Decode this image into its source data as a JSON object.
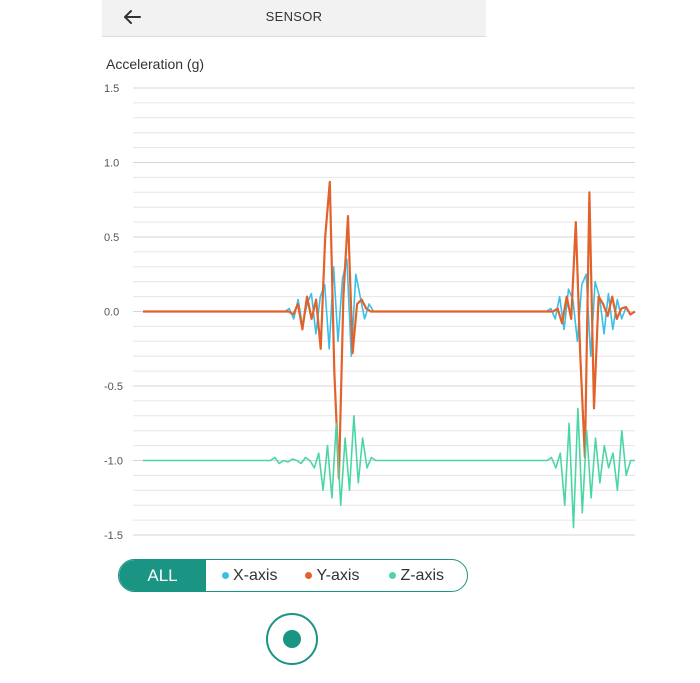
{
  "header": {
    "title": "SENSOR",
    "back_icon": "arrow-left-icon"
  },
  "legend": {
    "all_label": "ALL",
    "items": [
      {
        "label": "X-axis",
        "color": "#3bbfe6"
      },
      {
        "label": "Y-axis",
        "color": "#e2622c"
      },
      {
        "label": "Z-axis",
        "color": "#4cd6a4"
      }
    ]
  },
  "record_button": {
    "icon": "record-icon"
  },
  "chart_data": {
    "type": "line",
    "ylabel": "Acceleration (g)",
    "ylim": [
      -1.5,
      1.5
    ],
    "yticks": [
      "1.5",
      "1.0",
      "0.5",
      "0.0",
      "-0.5",
      "-1.0",
      "-1.5"
    ],
    "grid": true,
    "series": [
      {
        "name": "X-axis",
        "color": "#3bbfe6",
        "values": [
          0,
          0,
          0,
          0,
          0,
          0,
          0,
          0,
          0,
          0,
          0,
          0,
          0,
          0,
          0,
          0,
          0,
          0,
          0,
          0,
          0,
          0,
          0,
          0,
          0,
          0,
          0,
          0,
          0,
          0,
          0,
          0,
          0,
          0.02,
          -0.05,
          0.08,
          -0.1,
          0.05,
          0.12,
          -0.15,
          0.1,
          0.18,
          -0.25,
          0.3,
          -0.2,
          0.22,
          0.35,
          -0.3,
          0.25,
          0.1,
          -0.05,
          0.05,
          0,
          0,
          0,
          0,
          0,
          0,
          0,
          0,
          0,
          0,
          0,
          0,
          0,
          0,
          0,
          0,
          0,
          0,
          0,
          0,
          0,
          0,
          0,
          0,
          0,
          0,
          0,
          0,
          0,
          0,
          0,
          0,
          0,
          0,
          0,
          0,
          0,
          0,
          0,
          0,
          0.02,
          -0.05,
          0.1,
          -0.12,
          0.15,
          0.08,
          -0.2,
          0.18,
          0.25,
          -0.3,
          0.2,
          0.1,
          -0.15,
          0.12,
          -0.12,
          0.08,
          -0.05,
          0.03,
          -0.02,
          0
        ],
        "y_offset": 0
      },
      {
        "name": "Y-axis",
        "color": "#e2622c",
        "values": [
          0,
          0,
          0,
          0,
          0,
          0,
          0,
          0,
          0,
          0,
          0,
          0,
          0,
          0,
          0,
          0,
          0,
          0,
          0,
          0,
          0,
          0,
          0,
          0,
          0,
          0,
          0,
          0,
          0,
          0,
          0,
          0,
          0,
          -0.02,
          0.05,
          -0.12,
          0.1,
          -0.05,
          0.08,
          -0.25,
          0.5,
          0.87,
          -0.4,
          -1.12,
          0.1,
          0.64,
          -0.28,
          0.05,
          0.08,
          0.02,
          0,
          0,
          0,
          0,
          0,
          0,
          0,
          0,
          0,
          0,
          0,
          0,
          0,
          0,
          0,
          0,
          0,
          0,
          0,
          0,
          0,
          0,
          0,
          0,
          0,
          0,
          0,
          0,
          0,
          0,
          0,
          0,
          0,
          0,
          0,
          0,
          0,
          0,
          0,
          0,
          0,
          0.02,
          -0.08,
          0.1,
          -0.05,
          0.6,
          -0.3,
          -0.98,
          0.8,
          -0.65,
          0.1,
          0.05,
          -0.03,
          0.1,
          -0.05,
          0.02,
          0.03,
          -0.02,
          0
        ],
        "y_offset": 0
      },
      {
        "name": "Z-axis",
        "color": "#4cd6a4",
        "values": [
          -1,
          -1,
          -1,
          -1,
          -1,
          -1,
          -1,
          -1,
          -1,
          -1,
          -1,
          -1,
          -1,
          -1,
          -1,
          -1,
          -1,
          -1,
          -1,
          -1,
          -1,
          -1,
          -1,
          -1,
          -1,
          -1,
          -1,
          -1,
          -1,
          -1,
          -0.98,
          -1.02,
          -1,
          -1.01,
          -0.99,
          -1,
          -1.02,
          -0.98,
          -1,
          -1.05,
          -0.95,
          -1.2,
          -0.9,
          -1.25,
          -0.75,
          -1.3,
          -0.85,
          -1.2,
          -0.7,
          -1.15,
          -0.85,
          -1.05,
          -0.98,
          -1,
          -1,
          -1,
          -1,
          -1,
          -1,
          -1,
          -1,
          -1,
          -1,
          -1,
          -1,
          -1,
          -1,
          -1,
          -1,
          -1,
          -1,
          -1,
          -1,
          -1,
          -1,
          -1,
          -1,
          -1,
          -1,
          -1,
          -1,
          -1,
          -1,
          -1,
          -1,
          -1,
          -1,
          -1,
          -1,
          -1,
          -1,
          -1,
          -1,
          -0.98,
          -1.05,
          -0.95,
          -1.3,
          -0.75,
          -1.45,
          -0.65,
          -1.35,
          -0.8,
          -1.25,
          -0.85,
          -1.15,
          -0.9,
          -1.05,
          -0.95,
          -1.2,
          -0.8,
          -1.1,
          -1,
          -1
        ],
        "y_offset": 0
      }
    ]
  }
}
